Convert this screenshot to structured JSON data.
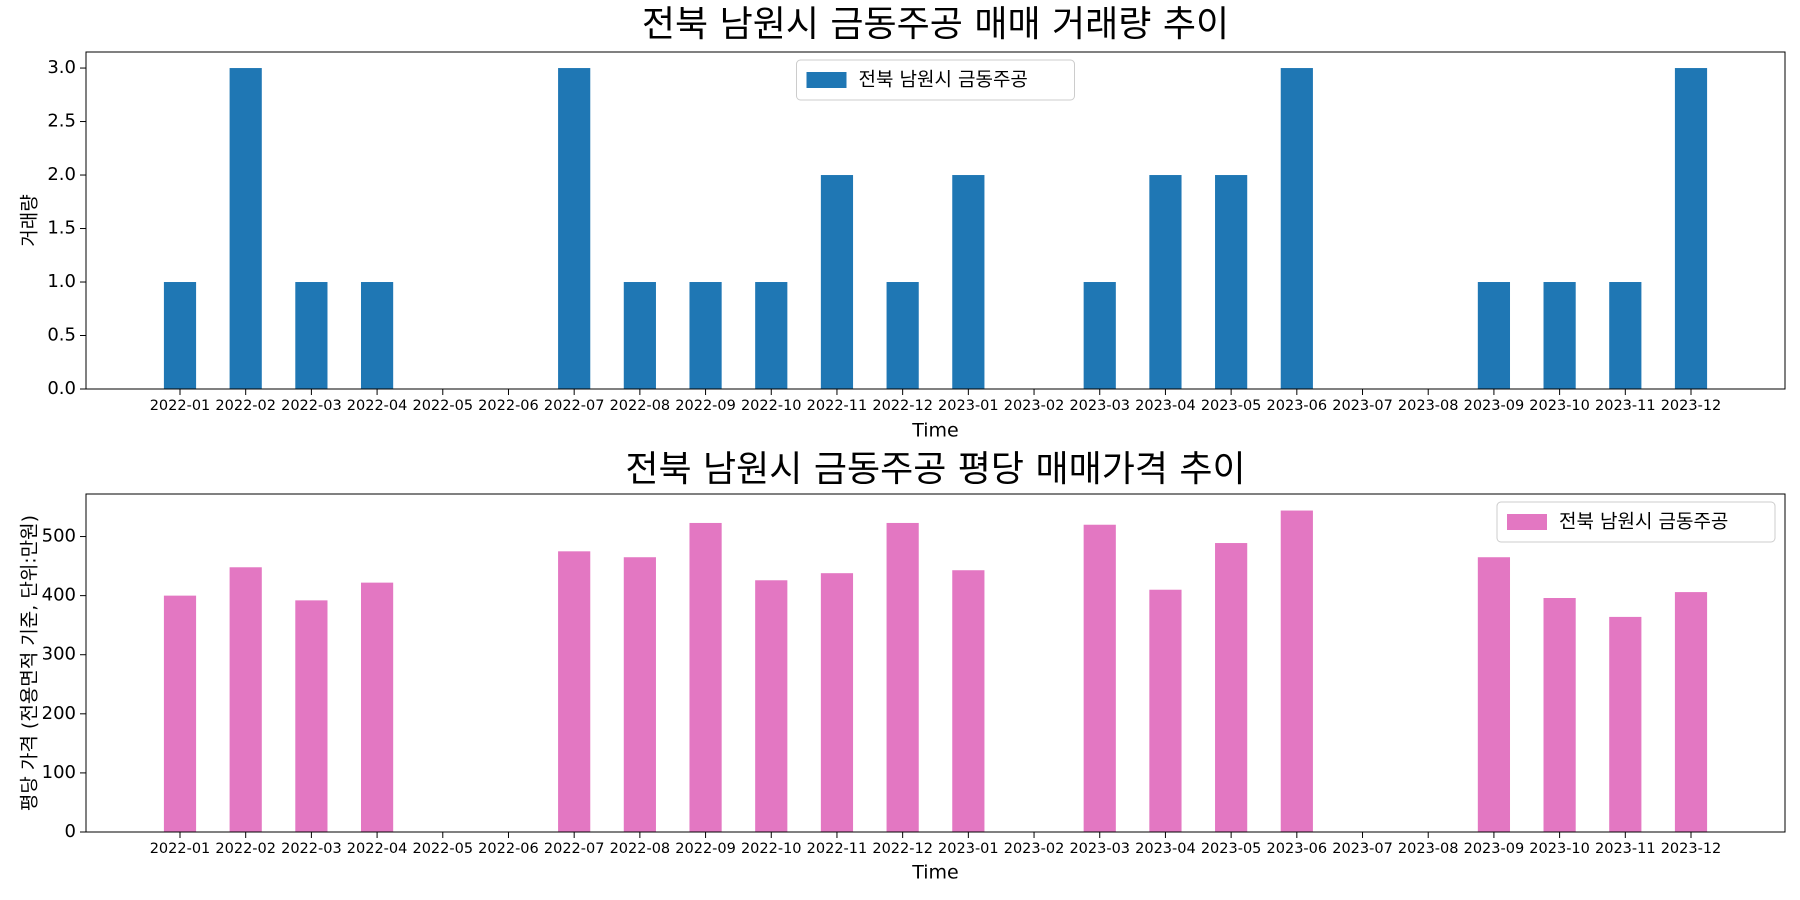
{
  "chart_data": [
    {
      "type": "bar",
      "title": "전북 남원시 금동주공 매매 거래량 추이",
      "xlabel": "Time",
      "ylabel": "거래량",
      "legend": "upper center",
      "categories": [
        "2022-01",
        "2022-02",
        "2022-03",
        "2022-04",
        "2022-05",
        "2022-06",
        "2022-07",
        "2022-08",
        "2022-09",
        "2022-10",
        "2022-11",
        "2022-12",
        "2023-01",
        "2023-02",
        "2023-03",
        "2023-04",
        "2023-05",
        "2023-06",
        "2023-07",
        "2023-08",
        "2023-09",
        "2023-10",
        "2023-11",
        "2023-12"
      ],
      "series": [
        {
          "name": "전북 남원시 금동주공",
          "color": "#1f77b4",
          "values": [
            1,
            3,
            1,
            1,
            0,
            0,
            3,
            1,
            1,
            1,
            2,
            1,
            2,
            0,
            1,
            2,
            2,
            3,
            0,
            0,
            1,
            1,
            1,
            3
          ]
        }
      ],
      "ylim": [
        0,
        3.15
      ],
      "yticks": [
        {
          "value": 0,
          "label": "0.0"
        },
        {
          "value": 0.5,
          "label": "0.5"
        },
        {
          "value": 1,
          "label": "1.0"
        },
        {
          "value": 1.5,
          "label": "1.5"
        },
        {
          "value": 2,
          "label": "2.0"
        },
        {
          "value": 2.5,
          "label": "2.5"
        },
        {
          "value": 3,
          "label": "3.0"
        }
      ]
    },
    {
      "type": "bar",
      "title": "전북 남원시 금동주공 평당 매매가격 추이",
      "xlabel": "Time",
      "ylabel": "평당 가격 (전용면적 기준, 단위:만원)",
      "legend": "upper right",
      "categories": [
        "2022-01",
        "2022-02",
        "2022-03",
        "2022-04",
        "2022-05",
        "2022-06",
        "2022-07",
        "2022-08",
        "2022-09",
        "2022-10",
        "2022-11",
        "2022-12",
        "2023-01",
        "2023-02",
        "2023-03",
        "2023-04",
        "2023-05",
        "2023-06",
        "2023-07",
        "2023-08",
        "2023-09",
        "2023-10",
        "2023-11",
        "2023-12"
      ],
      "series": [
        {
          "name": "전북 남원시 금동주공",
          "color": "#e377c2",
          "values": [
            400,
            448,
            392,
            422,
            null,
            null,
            475,
            465,
            523,
            426,
            438,
            523,
            443,
            null,
            520,
            410,
            489,
            544,
            null,
            null,
            465,
            396,
            364,
            406
          ]
        }
      ],
      "ylim": [
        0,
        572
      ],
      "yticks": [
        0,
        100,
        200,
        300,
        400,
        500
      ]
    }
  ]
}
